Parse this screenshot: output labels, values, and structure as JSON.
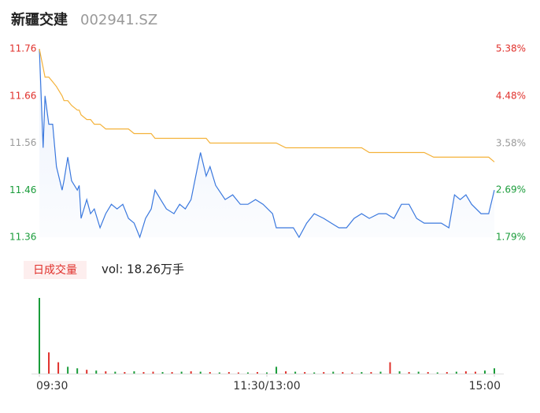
{
  "chart_data": [
    {
      "type": "line",
      "title": "新疆交建",
      "subtitle": "002941.SZ",
      "x": [
        0,
        2,
        3,
        5,
        7,
        9,
        12,
        13,
        15,
        17,
        20,
        21,
        22,
        25,
        27,
        29,
        32,
        35,
        38,
        41,
        44,
        47,
        50,
        53,
        56,
        59,
        61,
        64,
        67,
        71,
        74,
        77,
        80,
        82,
        85,
        88,
        90,
        93,
        98,
        102,
        106,
        110,
        114,
        118,
        123,
        125,
        130,
        134,
        137,
        141,
        145,
        150,
        154,
        158,
        162,
        166,
        170,
        174,
        179,
        183,
        187,
        191,
        195,
        199,
        203,
        208,
        212,
        216,
        219,
        222,
        225,
        228,
        233,
        237,
        240
      ],
      "series": [
        {
          "name": "price",
          "color": "#3a78de",
          "values": [
            11.76,
            11.55,
            11.66,
            11.6,
            11.6,
            11.51,
            11.46,
            11.48,
            11.53,
            11.48,
            11.46,
            11.47,
            11.4,
            11.44,
            11.41,
            11.42,
            11.38,
            11.41,
            11.43,
            11.42,
            11.43,
            11.4,
            11.39,
            11.36,
            11.4,
            11.42,
            11.46,
            11.44,
            11.42,
            11.41,
            11.43,
            11.42,
            11.44,
            11.48,
            11.54,
            11.49,
            11.51,
            11.47,
            11.44,
            11.45,
            11.43,
            11.43,
            11.44,
            11.43,
            11.41,
            11.38,
            11.38,
            11.38,
            11.36,
            11.39,
            11.41,
            11.4,
            11.39,
            11.38,
            11.38,
            11.4,
            11.41,
            11.4,
            11.41,
            11.41,
            11.4,
            11.43,
            11.43,
            11.4,
            11.39,
            11.39,
            11.39,
            11.38,
            11.45,
            11.44,
            11.45,
            11.43,
            11.41,
            11.41,
            11.46
          ]
        },
        {
          "name": "average",
          "color": "#f4b23a",
          "values": [
            11.76,
            11.72,
            11.7,
            11.7,
            11.69,
            11.68,
            11.66,
            11.65,
            11.65,
            11.64,
            11.63,
            11.63,
            11.62,
            11.61,
            11.61,
            11.6,
            11.6,
            11.59,
            11.59,
            11.59,
            11.59,
            11.59,
            11.58,
            11.58,
            11.58,
            11.58,
            11.57,
            11.57,
            11.57,
            11.57,
            11.57,
            11.57,
            11.57,
            11.57,
            11.57,
            11.57,
            11.56,
            11.56,
            11.56,
            11.56,
            11.56,
            11.56,
            11.56,
            11.56,
            11.56,
            11.56,
            11.55,
            11.55,
            11.55,
            11.55,
            11.55,
            11.55,
            11.55,
            11.55,
            11.55,
            11.55,
            11.55,
            11.54,
            11.54,
            11.54,
            11.54,
            11.54,
            11.54,
            11.54,
            11.54,
            11.53,
            11.53,
            11.53,
            11.53,
            11.53,
            11.53,
            11.53,
            11.53,
            11.53,
            11.52
          ]
        }
      ],
      "xlim": [
        0,
        240
      ],
      "ylim": [
        11.36,
        11.76
      ],
      "yticks": [
        11.36,
        11.46,
        11.56,
        11.66,
        11.76
      ],
      "ytick_colors": [
        "#1a9c3a",
        "#1a9c3a",
        "#999999",
        "#e0302b",
        "#e0302b"
      ],
      "y2lim": [
        1.79,
        5.38
      ],
      "y2ticks": [
        {
          "value": 1.79,
          "label": "1.79%"
        },
        {
          "value": 2.69,
          "label": "2.69%"
        },
        {
          "value": 3.58,
          "label": "3.58%"
        },
        {
          "value": 4.48,
          "label": "4.48%"
        },
        {
          "value": 5.38,
          "label": "5.38%"
        }
      ]
    },
    {
      "type": "bar",
      "title": "日成交量",
      "subtitle": "vol: 18.26万手",
      "x": [
        0,
        5,
        10,
        15,
        20,
        25,
        30,
        35,
        40,
        45,
        50,
        55,
        60,
        65,
        70,
        75,
        80,
        85,
        90,
        95,
        100,
        105,
        110,
        115,
        120,
        125,
        130,
        135,
        140,
        145,
        150,
        155,
        160,
        165,
        170,
        175,
        180,
        185,
        190,
        195,
        200,
        205,
        210,
        215,
        220,
        225,
        230,
        235,
        240
      ],
      "values": [
        10000,
        2800,
        1500,
        900,
        700,
        500,
        400,
        300,
        250,
        200,
        300,
        200,
        250,
        200,
        200,
        250,
        300,
        250,
        200,
        150,
        200,
        150,
        150,
        200,
        150,
        900,
        300,
        250,
        200,
        150,
        200,
        250,
        200,
        150,
        200,
        200,
        250,
        1500,
        300,
        200,
        250,
        200,
        150,
        200,
        250,
        300,
        250,
        400,
        700
      ],
      "colors": [
        "#1a9c3a",
        "#e0302b",
        "#e0302b",
        "#1a9c3a",
        "#1a9c3a",
        "#e0302b",
        "#1a9c3a",
        "#e0302b",
        "#1a9c3a",
        "#e0302b",
        "#1a9c3a",
        "#e0302b",
        "#e0302b",
        "#1a9c3a",
        "#e0302b",
        "#1a9c3a",
        "#e0302b",
        "#1a9c3a",
        "#e0302b",
        "#1a9c3a",
        "#e0302b",
        "#e0302b",
        "#1a9c3a",
        "#e0302b",
        "#1a9c3a",
        "#1a9c3a",
        "#e0302b",
        "#1a9c3a",
        "#e0302b",
        "#1a9c3a",
        "#e0302b",
        "#1a9c3a",
        "#e0302b",
        "#e0302b",
        "#1a9c3a",
        "#e0302b",
        "#1a9c3a",
        "#e0302b",
        "#1a9c3a",
        "#e0302b",
        "#1a9c3a",
        "#e0302b",
        "#1a9c3a",
        "#e0302b",
        "#1a9c3a",
        "#e0302b",
        "#e0302b",
        "#1a9c3a",
        "#1a9c3a"
      ],
      "xlim": [
        0,
        240
      ],
      "xticks": [
        {
          "value": 0,
          "label": "09:30"
        },
        {
          "value": 120,
          "label": "11:30/13:00"
        },
        {
          "value": 240,
          "label": "15:00"
        }
      ]
    }
  ]
}
